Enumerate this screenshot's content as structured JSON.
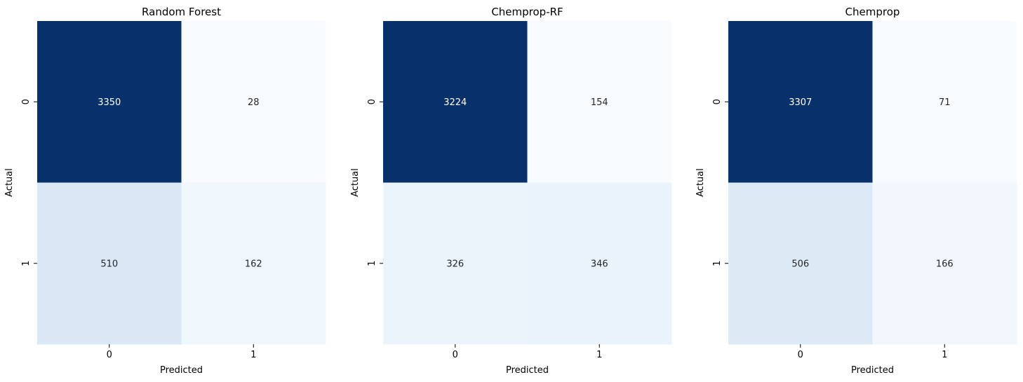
{
  "chart_data": [
    {
      "type": "heatmap",
      "title": "Random Forest",
      "xlabel": "Predicted",
      "ylabel": "Actual",
      "x_ticks": [
        "0",
        "1"
      ],
      "y_ticks": [
        "0",
        "1"
      ],
      "values": [
        [
          3350,
          28
        ],
        [
          510,
          162
        ]
      ],
      "colormap": "Blues",
      "colorbar": false
    },
    {
      "type": "heatmap",
      "title": "Chemprop-RF",
      "xlabel": "Predicted",
      "ylabel": "Actual",
      "x_ticks": [
        "0",
        "1"
      ],
      "y_ticks": [
        "0",
        "1"
      ],
      "values": [
        [
          3224,
          154
        ],
        [
          326,
          346
        ]
      ],
      "colormap": "Blues",
      "colorbar": false
    },
    {
      "type": "heatmap",
      "title": "Chemprop",
      "xlabel": "Predicted",
      "ylabel": "Actual",
      "x_ticks": [
        "0",
        "1"
      ],
      "y_ticks": [
        "0",
        "1"
      ],
      "values": [
        [
          3307,
          71
        ],
        [
          506,
          166
        ]
      ],
      "colormap": "Blues",
      "colorbar": false
    }
  ],
  "colors": {
    "low": "#f7fbff",
    "high": "#08306b",
    "text_dark": "#262626",
    "text_light": "#ffffff"
  }
}
